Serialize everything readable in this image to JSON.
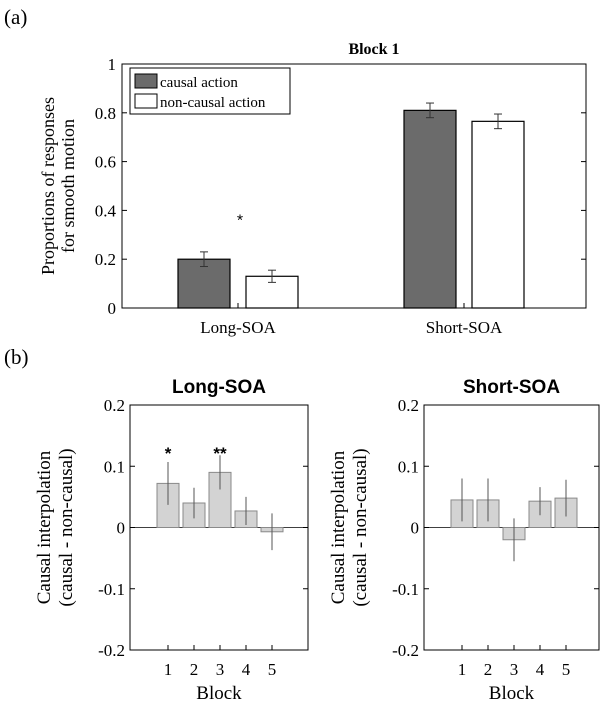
{
  "panel_labels": [
    "(a)",
    "(b)"
  ],
  "chart_data": [
    {
      "type": "bar",
      "title": "Block 1",
      "ylabel": "Proportions of responses for smooth motion",
      "ylabel_lines": [
        "Proportions of responses",
        "for smooth motion"
      ],
      "xlabel": "",
      "categories": [
        "Long-SOA",
        "Short-SOA"
      ],
      "ylim": [
        0,
        1
      ],
      "yticks": [
        "0",
        "0.2",
        "0.4",
        "0.6",
        "0.8",
        "1"
      ],
      "series": [
        {
          "name": "causal action",
          "values": [
            0.2,
            0.81
          ],
          "errors": [
            0.03,
            0.03
          ],
          "color": "#6b6b6b"
        },
        {
          "name": "non-causal action",
          "values": [
            0.13,
            0.765
          ],
          "errors": [
            0.025,
            0.03
          ],
          "color": "#ffffff"
        }
      ],
      "annotations": [
        {
          "category": "Long-SOA",
          "text": "*"
        }
      ],
      "legend_position": "top-left",
      "grid": false
    },
    {
      "type": "bar",
      "title": "Long-SOA",
      "ylabel": "Causal interpolation (causal - non-causal)",
      "ylabel_lines": [
        "Causal interpolation",
        "(causal - non-causal)"
      ],
      "xlabel": "Block",
      "categories": [
        "1",
        "2",
        "3",
        "4",
        "5"
      ],
      "values": [
        0.072,
        0.04,
        0.09,
        0.027,
        -0.007
      ],
      "errors": [
        0.035,
        0.025,
        0.028,
        0.023,
        0.03
      ],
      "ylim": [
        -0.2,
        0.2
      ],
      "yticks": [
        "-0.2",
        "-0.1",
        "0",
        "0.1",
        "0.2"
      ],
      "annotations": [
        {
          "category": "1",
          "text": "*"
        },
        {
          "category": "3",
          "text": "**"
        }
      ],
      "color": "#d3d3d3",
      "grid": false
    },
    {
      "type": "bar",
      "title": "Short-SOA",
      "ylabel": "Causal interpolation (causal - non-causal)",
      "ylabel_lines": [
        "Causal interpolation",
        "(causal - non-causal)"
      ],
      "xlabel": "Block",
      "categories": [
        "1",
        "2",
        "3",
        "4",
        "5"
      ],
      "values": [
        0.045,
        0.045,
        -0.02,
        0.043,
        0.048
      ],
      "errors": [
        0.035,
        0.035,
        0.035,
        0.023,
        0.03
      ],
      "ylim": [
        -0.2,
        0.2
      ],
      "yticks": [
        "-0.2",
        "-0.1",
        "0",
        "0.1",
        "0.2"
      ],
      "annotations": [],
      "color": "#d3d3d3",
      "grid": false
    }
  ]
}
